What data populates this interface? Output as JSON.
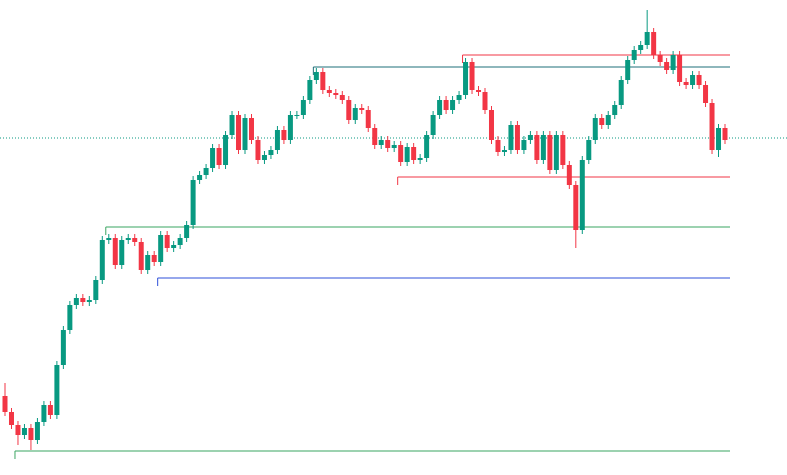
{
  "chart_data": {
    "type": "candlestick",
    "up_color": "#089981",
    "down_color": "#f23645",
    "ylim": [
      0,
      475
    ],
    "open": [
      79,
      63,
      50,
      40,
      47,
      35,
      53,
      70,
      60,
      110,
      145,
      170,
      177,
      173,
      175,
      195,
      235,
      237,
      210,
      235,
      237,
      233,
      205,
      220,
      213,
      240,
      227,
      230,
      237,
      250,
      295,
      300,
      307,
      327,
      310,
      340,
      360,
      325,
      357,
      335,
      315,
      320,
      325,
      345,
      335,
      360,
      360,
      375,
      395,
      403,
      385,
      382,
      380,
      375,
      355,
      367,
      365,
      347,
      330,
      335,
      327,
      330,
      313,
      328,
      315,
      317,
      340,
      360,
      375,
      365,
      375,
      380,
      413,
      385,
      383,
      365,
      335,
      323,
      325,
      350,
      325,
      335,
      340,
      315,
      340,
      305,
      340,
      310,
      290,
      245,
      315,
      335,
      357,
      350,
      360,
      370,
      395,
      415,
      425,
      430,
      443,
      420,
      413,
      405,
      420,
      393,
      390,
      400,
      390,
      372,
      325,
      347
    ],
    "high": [
      92,
      67,
      54,
      51,
      51,
      57,
      74,
      74,
      114,
      149,
      174,
      181,
      181,
      179,
      199,
      239,
      241,
      241,
      239,
      241,
      241,
      237,
      224,
      224,
      244,
      244,
      234,
      241,
      254,
      299,
      304,
      311,
      331,
      331,
      344,
      364,
      364,
      361,
      361,
      339,
      324,
      329,
      349,
      349,
      364,
      364,
      379,
      399,
      407,
      407,
      389,
      386,
      384,
      379,
      371,
      371,
      369,
      351,
      339,
      339,
      334,
      334,
      332,
      332,
      321,
      344,
      364,
      379,
      379,
      379,
      384,
      417,
      417,
      389,
      387,
      369,
      339,
      329,
      354,
      354,
      339,
      344,
      344,
      344,
      344,
      344,
      344,
      314,
      294,
      319,
      339,
      361,
      361,
      364,
      374,
      399,
      419,
      429,
      434,
      465,
      447,
      424,
      417,
      424,
      424,
      397,
      404,
      404,
      394,
      376,
      351,
      351
    ],
    "low": [
      59,
      46,
      30,
      36,
      25,
      31,
      49,
      56,
      56,
      106,
      141,
      166,
      169,
      169,
      171,
      191,
      231,
      206,
      206,
      231,
      229,
      201,
      201,
      209,
      209,
      223,
      223,
      226,
      233,
      246,
      291,
      296,
      303,
      306,
      306,
      336,
      321,
      321,
      331,
      311,
      311,
      316,
      321,
      331,
      331,
      356,
      356,
      371,
      391,
      381,
      378,
      376,
      371,
      351,
      351,
      361,
      343,
      326,
      326,
      323,
      323,
      309,
      309,
      311,
      311,
      313,
      336,
      356,
      361,
      361,
      371,
      376,
      381,
      379,
      361,
      331,
      319,
      319,
      321,
      321,
      321,
      331,
      311,
      311,
      301,
      301,
      306,
      286,
      227,
      241,
      311,
      331,
      346,
      346,
      356,
      366,
      391,
      411,
      421,
      426,
      416,
      409,
      401,
      401,
      389,
      386,
      386,
      386,
      368,
      321,
      318,
      331
    ],
    "close": [
      63,
      50,
      40,
      47,
      35,
      53,
      70,
      60,
      110,
      145,
      170,
      177,
      173,
      175,
      195,
      235,
      237,
      210,
      235,
      237,
      233,
      205,
      220,
      213,
      240,
      227,
      230,
      237,
      250,
      295,
      300,
      307,
      327,
      310,
      340,
      360,
      325,
      357,
      335,
      315,
      320,
      325,
      345,
      335,
      360,
      360,
      375,
      395,
      403,
      385,
      382,
      380,
      375,
      355,
      367,
      365,
      347,
      330,
      335,
      327,
      330,
      313,
      328,
      315,
      317,
      340,
      360,
      375,
      365,
      375,
      380,
      413,
      385,
      383,
      365,
      335,
      323,
      325,
      350,
      325,
      335,
      340,
      315,
      340,
      305,
      340,
      310,
      290,
      245,
      315,
      335,
      357,
      350,
      360,
      370,
      395,
      415,
      425,
      430,
      443,
      420,
      413,
      405,
      420,
      393,
      390,
      400,
      390,
      372,
      325,
      347,
      335
    ],
    "levels": [
      {
        "value": 420,
        "color": "#f23645",
        "from": 71
      },
      {
        "value": 408,
        "color": "#1e6f78",
        "from": 48
      },
      {
        "value": 298,
        "color": "#f23645",
        "from": 61
      },
      {
        "value": 248,
        "color": "#3aa561",
        "from": 16
      },
      {
        "value": 197,
        "color": "#2e4fd8",
        "from": 24
      },
      {
        "value": 24,
        "color": "#3aa561",
        "from": 2
      }
    ],
    "current_price": {
      "value": 337,
      "color": "#089981"
    }
  }
}
